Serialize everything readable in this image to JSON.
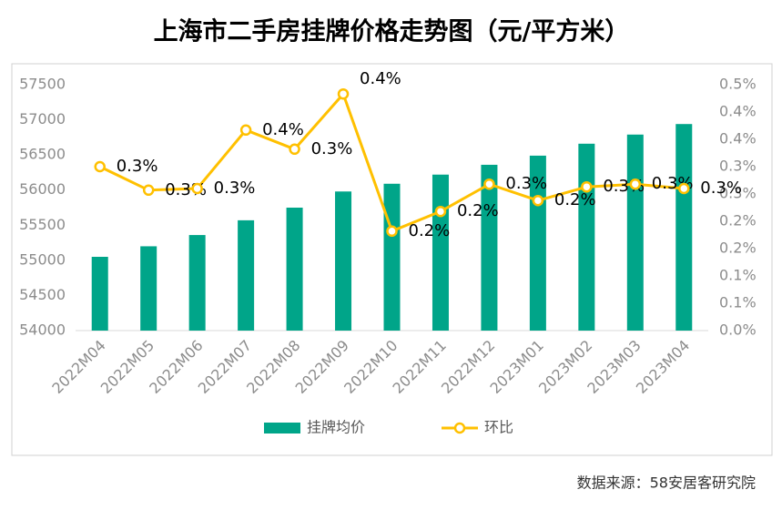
{
  "chart_data": {
    "type": "bar",
    "title": "上海市二手房挂牌价格走势图（元/平方米）",
    "source": "数据来源：58安居客研究院",
    "categories": [
      "2022M04",
      "2022M05",
      "2022M06",
      "2022M07",
      "2022M08",
      "2022M09",
      "2022M10",
      "2022M11",
      "2022M12",
      "2023M01",
      "2023M02",
      "2023M03",
      "2023M04"
    ],
    "series": [
      {
        "name": "挂牌均价",
        "type": "bar",
        "color": "#00a589",
        "values": [
          55050,
          55200,
          55360,
          55570,
          55750,
          55980,
          56090,
          56220,
          56360,
          56490,
          56660,
          56790,
          56940
        ]
      },
      {
        "name": "环比",
        "type": "line",
        "axis": "y2",
        "color": "#ffc000",
        "values": [
          0.3,
          0.257,
          0.26,
          0.367,
          0.332,
          0.433,
          0.182,
          0.218,
          0.268,
          0.238,
          0.263,
          0.268,
          0.26
        ],
        "value_labels": [
          "0.3%",
          "0.3%",
          "0.3%",
          "0.4%",
          "0.3%",
          "0.4%",
          "0.2%",
          "0.2%",
          "0.3%",
          "0.2%",
          "0.3%",
          "0.3%",
          "0.3%"
        ]
      }
    ],
    "ylim": [
      54000,
      57500
    ],
    "yticks": [
      54000,
      54500,
      55000,
      55500,
      56000,
      56500,
      57000,
      57500
    ],
    "y2lim": [
      0,
      0.45
    ],
    "y2ticks": [
      {
        "value": 0,
        "label": "0.0%"
      },
      {
        "value": 0.05,
        "label": "0.1%"
      },
      {
        "value": 0.1,
        "label": "0.1%"
      },
      {
        "value": 0.15,
        "label": "0.2%"
      },
      {
        "value": 0.2,
        "label": "0.2%"
      },
      {
        "value": 0.25,
        "label": "0.3%"
      },
      {
        "value": 0.3,
        "label": "0.3%"
      },
      {
        "value": 0.35,
        "label": "0.4%"
      },
      {
        "value": 0.4,
        "label": "0.4%"
      },
      {
        "value": 0.45,
        "label": "0.5%"
      }
    ],
    "legend": "bottom"
  }
}
